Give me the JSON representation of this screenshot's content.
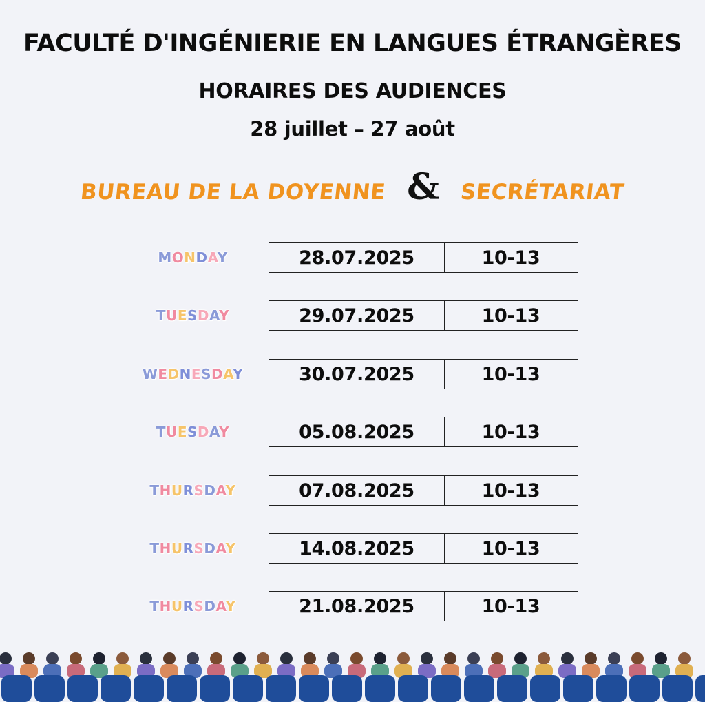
{
  "header": {
    "faculty": "FACULTÉ D'INGÉNIERIE EN LANGUES ÉTRANGÈRES",
    "subtitle": "HORAIRES DES AUDIENCES",
    "period": "28 juillet – 27 août"
  },
  "offices": {
    "left": "BUREAU DE LA DOYENNE",
    "connector": "&",
    "right": "SECRÉTARIAT"
  },
  "schedule": [
    {
      "day": "MONDAY",
      "date": "28.07.2025",
      "time": "10-13"
    },
    {
      "day": "TUESDAY",
      "date": "29.07.2025",
      "time": "10-13"
    },
    {
      "day": "WEDNESDAY",
      "date": "30.07.2025",
      "time": "10-13"
    },
    {
      "day": "TUESDAY",
      "date": "05.08.2025",
      "time": "10-13"
    },
    {
      "day": "THURSDAY",
      "date": "07.08.2025",
      "time": "10-13"
    },
    {
      "day": "THURSDAY",
      "date": "14.08.2025",
      "time": "10-13"
    },
    {
      "day": "THURSDAY",
      "date": "21.08.2025",
      "time": "10-13"
    }
  ],
  "colors": {
    "background": "#f2f3f8",
    "accent_orange": "#f0931f",
    "text_dark": "#0d0d0d",
    "day_letter_palette": [
      "#8a9ad8",
      "#f08aa0",
      "#f6c46a",
      "#7f8fd8",
      "#f7a8b8"
    ],
    "seat_blue": "#1f4d9a"
  },
  "illustration": "audience-illustration"
}
